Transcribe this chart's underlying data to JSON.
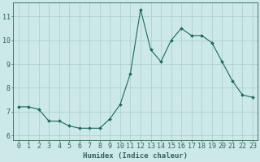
{
  "x": [
    0,
    1,
    2,
    3,
    4,
    5,
    6,
    7,
    8,
    9,
    10,
    11,
    12,
    13,
    14,
    15,
    16,
    17,
    18,
    19,
    20,
    21,
    22,
    23
  ],
  "y": [
    7.2,
    7.2,
    7.1,
    6.6,
    6.6,
    6.4,
    6.3,
    6.3,
    6.3,
    6.7,
    7.3,
    8.6,
    11.3,
    9.6,
    9.1,
    10.0,
    10.5,
    10.2,
    10.2,
    9.9,
    9.1,
    8.3,
    7.7,
    7.6
  ],
  "line_color": "#1a6b5a",
  "marker": "D",
  "marker_size": 2.0,
  "bg_color": "#cce8e8",
  "grid_color": "#aacccc",
  "xlabel": "Humidex (Indice chaleur)",
  "xlim": [
    -0.5,
    23.5
  ],
  "ylim": [
    5.8,
    11.6
  ],
  "yticks": [
    6,
    7,
    8,
    9,
    10,
    11
  ],
  "xtick_labels": [
    "0",
    "1",
    "2",
    "3",
    "4",
    "5",
    "6",
    "7",
    "8",
    "9",
    "10",
    "11",
    "12",
    "13",
    "14",
    "15",
    "16",
    "17",
    "18",
    "19",
    "20",
    "21",
    "22",
    "23"
  ],
  "xlabel_fontsize": 6.5,
  "tick_fontsize": 6.0,
  "axis_color": "#336655"
}
